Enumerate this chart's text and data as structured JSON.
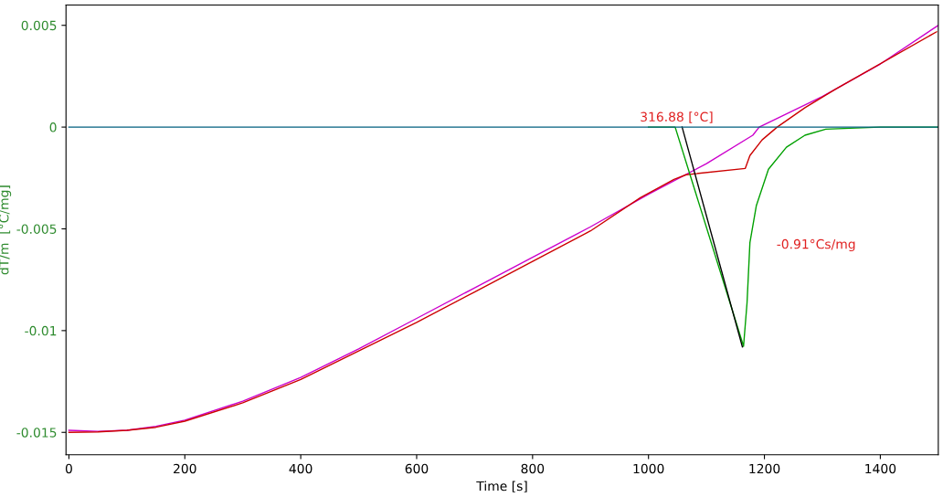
{
  "chart_data": {
    "type": "line",
    "xlabel": "Time [s]",
    "ylabel": "dT/m  [°C/mg]",
    "xlim": [
      -5,
      1500
    ],
    "ylim": [
      -0.0161,
      0.006
    ],
    "xticks": [
      0,
      200,
      400,
      600,
      800,
      1000,
      1200,
      1400
    ],
    "yticks": [
      -0.015,
      -0.01,
      -0.005,
      0,
      0.005
    ],
    "grid": false,
    "legend": false,
    "marker": "none",
    "line_style": "solid",
    "series": [
      {
        "color": "#cc00cc",
        "x": [
          0,
          50,
          100,
          150,
          200,
          300,
          400,
          500,
          600,
          700,
          800,
          900,
          1000,
          1100,
          1180,
          1191,
          1300,
          1400,
          1500
        ],
        "values": [
          -0.0149,
          -0.01495,
          -0.0149,
          -0.0147,
          -0.0144,
          -0.01347,
          -0.0123,
          -0.0109,
          -0.0094,
          -0.0079,
          -0.0064,
          -0.0049,
          -0.0033,
          -0.0018,
          -0.0004,
          0.0,
          0.0015,
          0.0031,
          0.005
        ]
      },
      {
        "color": "#cc0000",
        "x": [
          0,
          50,
          100,
          150,
          200,
          300,
          400,
          500,
          600,
          700,
          800,
          900,
          986,
          1044,
          1065,
          1167,
          1175,
          1196,
          1222,
          1270,
          1322,
          1497
        ],
        "values": [
          -0.015,
          -0.01498,
          -0.0149,
          -0.01475,
          -0.01445,
          -0.01355,
          -0.0124,
          -0.011,
          -0.0096,
          -0.0081,
          -0.0066,
          -0.0051,
          -0.00347,
          -0.00257,
          -0.00234,
          -0.00203,
          -0.0014,
          -0.00063,
          0.0,
          0.00095,
          0.00185,
          0.00468
        ]
      },
      {
        "color": "#00a000",
        "x": [
          1000,
          1046,
          1164,
          1170,
          1175,
          1186,
          1207,
          1238,
          1270,
          1306,
          1400,
          1500
        ],
        "values": [
          0.0,
          0.0,
          -0.01077,
          -0.00865,
          -0.00568,
          -0.00387,
          -0.00207,
          -0.00099,
          -0.0004,
          -0.0001,
          0.0,
          0.0
        ]
      },
      {
        "color": "#000000",
        "x": [
          1058,
          1162
        ],
        "values": [
          0.0,
          -0.0108
        ]
      },
      {
        "color": "#005f7f",
        "x": [
          0,
          1500
        ],
        "values": [
          0.0,
          0.0
        ]
      }
    ],
    "annotations": [
      "316.88 [°C]",
      "-0.91°Cs/mg"
    ]
  }
}
